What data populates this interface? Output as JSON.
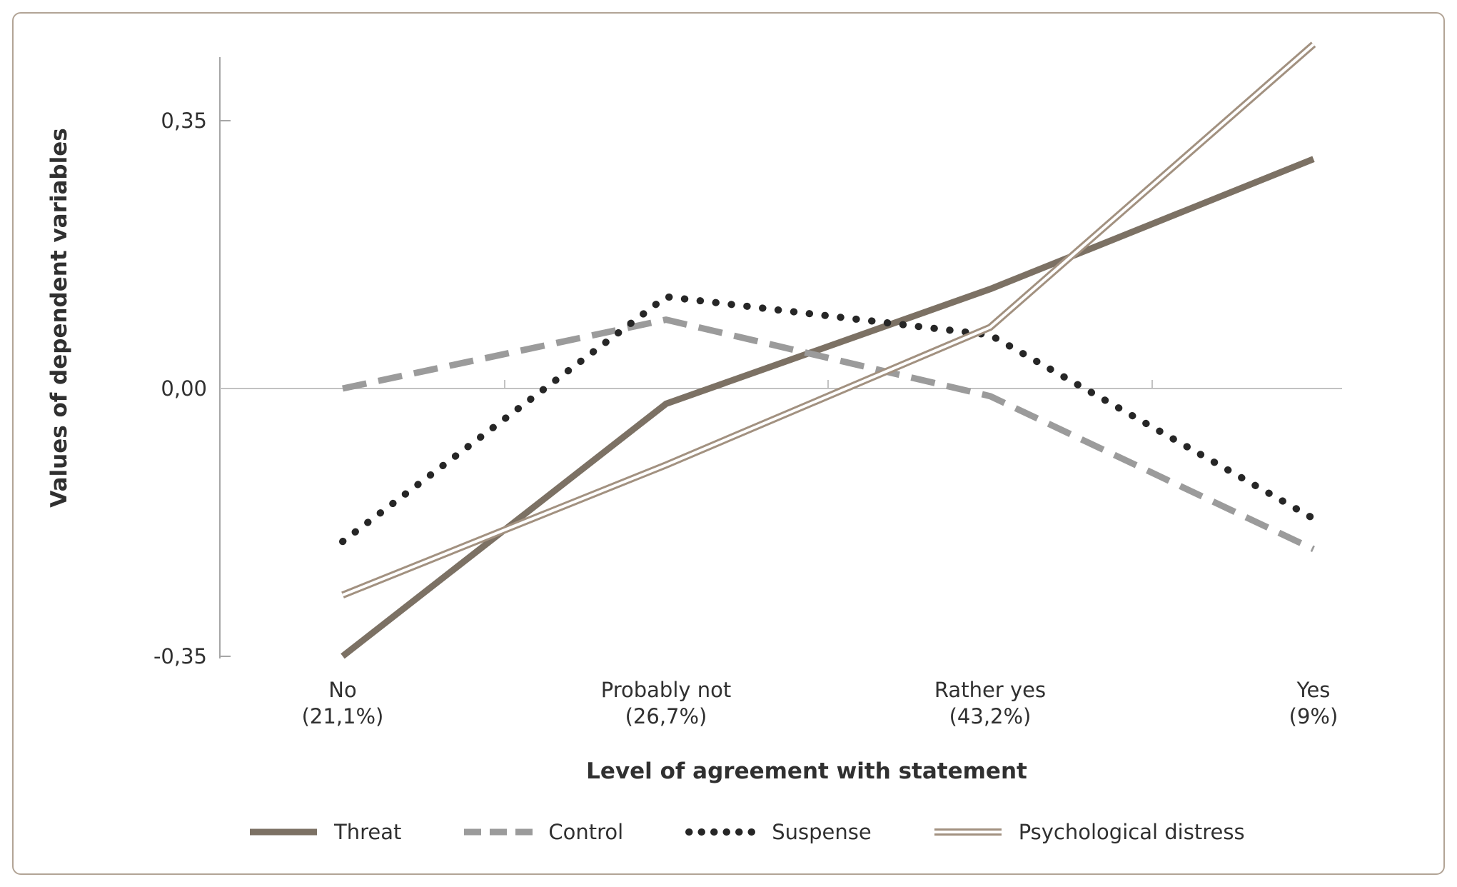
{
  "figure": {
    "background": "#ffffff",
    "card_border_color": "#b2a496"
  },
  "chart_data": {
    "type": "line",
    "title": "",
    "x_axis_label": "Level of agreement with statement",
    "y_axis_label": "Values of dependent variables",
    "categories": [
      {
        "label": "No",
        "pct": "(21,1%)"
      },
      {
        "label": "Probably not",
        "pct": "(26,7%)"
      },
      {
        "label": "Rather yes",
        "pct": "(43,2%)"
      },
      {
        "label": "Yes",
        "pct": "(9%)"
      }
    ],
    "y_ticks": [
      {
        "label": "0,35",
        "value": 0.35
      },
      {
        "label": "0,00",
        "value": 0.0
      },
      {
        "label": "-0,35",
        "value": -0.35
      }
    ],
    "ylim": [
      -0.35,
      0.45
    ],
    "grid": "zero-line-only",
    "legend_position": "bottom",
    "series": [
      {
        "name": "Threat",
        "style": "solid",
        "color": "#7c7164",
        "values": [
          -0.35,
          -0.02,
          0.13,
          0.3
        ]
      },
      {
        "name": "Control",
        "style": "dashed",
        "color": "#9b9b9b",
        "values": [
          0.0,
          0.09,
          -0.01,
          -0.21
        ]
      },
      {
        "name": "Suspense",
        "style": "dotted",
        "color": "#262626",
        "values": [
          -0.2,
          0.12,
          0.07,
          -0.17
        ]
      },
      {
        "name": "Psychological distress",
        "style": "double",
        "color": "#a29180",
        "values": [
          -0.27,
          -0.1,
          0.08,
          0.45
        ]
      }
    ]
  },
  "colors": {
    "axis": "#a6a6a6",
    "zero_line": "#c2c2c2",
    "text": "#303030"
  }
}
